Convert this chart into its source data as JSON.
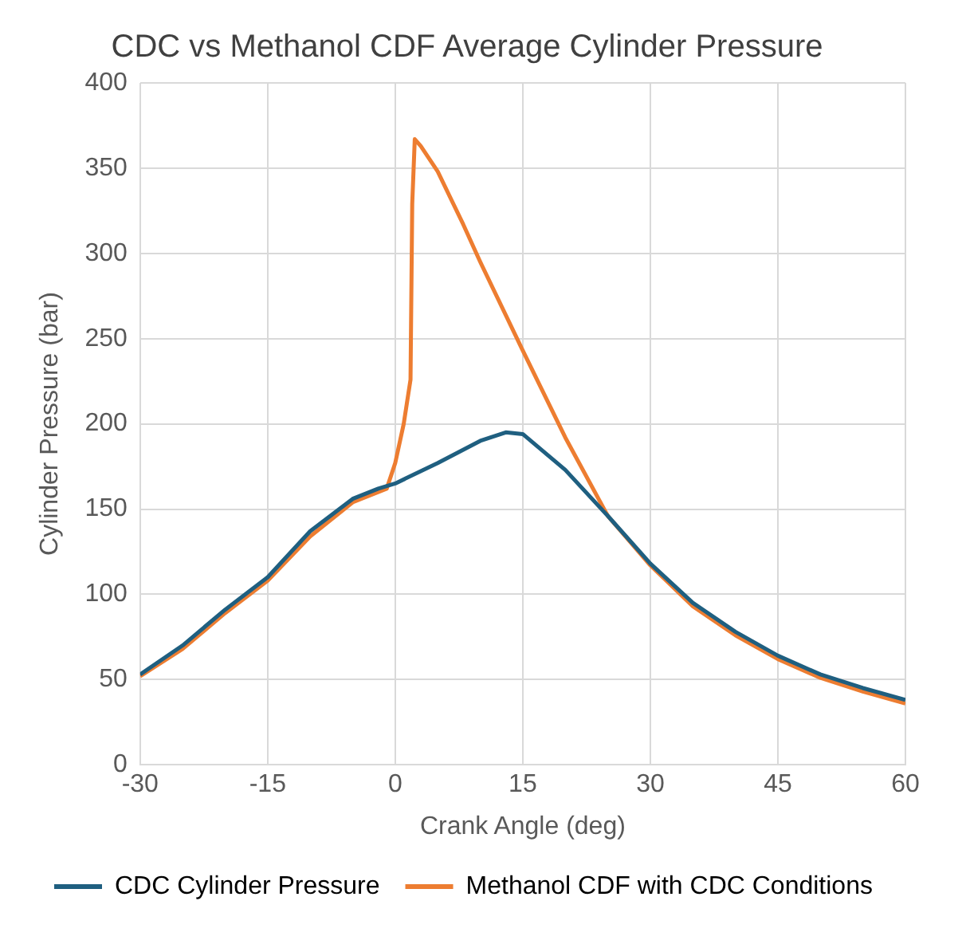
{
  "chart_data": {
    "type": "line",
    "title": "CDC vs Methanol CDF Average Cylinder Pressure",
    "xlabel": "Crank Angle (deg)",
    "ylabel": "Cylinder Pressure (bar)",
    "xlim": [
      -30,
      60
    ],
    "xticks": [
      -30,
      -15,
      0,
      15,
      30,
      45,
      60
    ],
    "ylim": [
      0,
      400
    ],
    "yticks": [
      0,
      50,
      100,
      150,
      200,
      250,
      300,
      350,
      400
    ],
    "grid": true,
    "legend": "bottom",
    "marker": "none",
    "line_style": "solid",
    "series": [
      {
        "name": "CDC Cylinder Pressure",
        "color": "#1f5f80",
        "x": [
          -30,
          -25,
          -20,
          -15,
          -10,
          -5,
          -2,
          0,
          5,
          10,
          13,
          15,
          20,
          25,
          30,
          35,
          40,
          45,
          50,
          55,
          60
        ],
        "values": [
          53,
          70,
          91,
          110,
          137,
          156,
          162,
          165,
          177,
          190,
          195,
          194,
          173,
          146,
          118,
          95,
          78,
          64,
          53,
          45,
          38
        ]
      },
      {
        "name": "Methanol CDF with CDC Conditions",
        "color": "#ed7d31",
        "x": [
          -30,
          -25,
          -20,
          -15,
          -10,
          -5,
          -1,
          0,
          1,
          1.8,
          2,
          2.3,
          3,
          5,
          8,
          10,
          15,
          20,
          25,
          30,
          35,
          40,
          45,
          50,
          55,
          60
        ],
        "values": [
          52,
          68,
          89,
          108,
          134,
          154,
          162,
          177,
          200,
          226,
          329,
          367,
          363,
          348,
          317,
          295,
          243,
          192,
          146,
          117,
          93,
          76,
          62,
          51,
          43,
          36
        ]
      }
    ]
  }
}
